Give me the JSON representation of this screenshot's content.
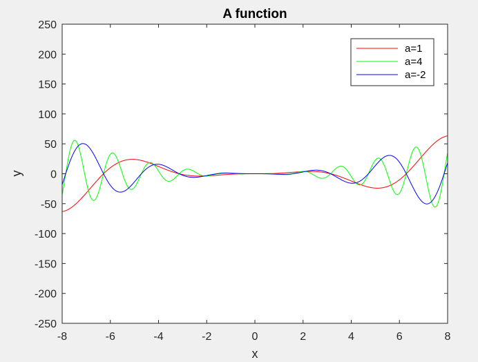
{
  "chart_data": {
    "type": "line",
    "title": "A function",
    "xlabel": "x",
    "ylabel": "y",
    "xlim": [
      -8,
      8
    ],
    "ylim": [
      -250,
      250
    ],
    "xticks": [
      -8,
      -6,
      -4,
      -2,
      0,
      2,
      4,
      6,
      8
    ],
    "yticks": [
      -250,
      -200,
      -150,
      -100,
      -50,
      0,
      50,
      100,
      150,
      200,
      250
    ],
    "legend_position": "top-right",
    "grid": false,
    "series": [
      {
        "name": "a=1",
        "color": "#ff0000",
        "a": 1
      },
      {
        "name": "a=4",
        "color": "#00ff00",
        "a": 4
      },
      {
        "name": "a=-2",
        "color": "#0000ff",
        "a": -2
      }
    ],
    "x_samples": 1201,
    "formula": "y = x^2 * sin(a*x)"
  }
}
